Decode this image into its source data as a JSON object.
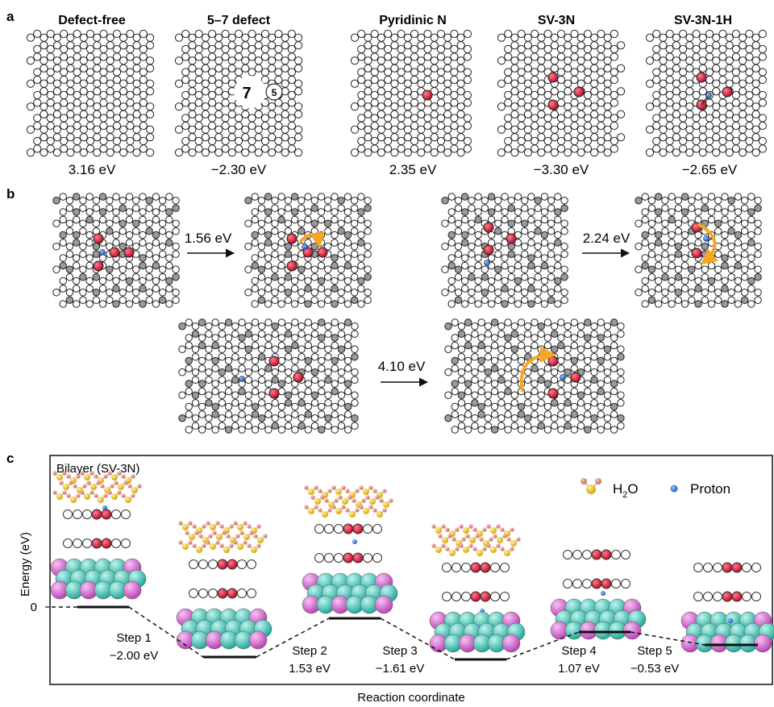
{
  "panel_a": {
    "label": "a",
    "structures": [
      {
        "title": "Defect-free",
        "energy": "3.16 eV"
      },
      {
        "title": "5–7 defect",
        "energy": "−2.30 eV",
        "ring_labels": [
          "7",
          "5"
        ]
      },
      {
        "title": "Pyridinic N",
        "energy": "2.35 eV"
      },
      {
        "title": "SV-3N",
        "energy": "−3.30 eV"
      },
      {
        "title": "SV-3N-1H",
        "energy": "−2.65 eV"
      }
    ]
  },
  "panel_b": {
    "label": "b",
    "barriers": [
      "1.56 eV",
      "2.24 eV",
      "4.10 eV"
    ]
  },
  "panel_c": {
    "label": "c",
    "box_title": "Bilayer (SV-3N)",
    "ylabel": "Energy (eV)",
    "xlabel": "Reaction coordinate",
    "zero_tick": "0",
    "legend": {
      "water_prefix": "H",
      "water_sub": "2",
      "water_suffix": "O",
      "proton": "Proton"
    },
    "steps": [
      {
        "name": "Step 1",
        "value": "−2.00 eV"
      },
      {
        "name": "Step 2",
        "value": "1.53 eV"
      },
      {
        "name": "Step 3",
        "value": "−1.61 eV"
      },
      {
        "name": "Step 4",
        "value": "1.07 eV"
      },
      {
        "name": "Step 5",
        "value": "−0.53 eV"
      }
    ]
  },
  "colors": {
    "nitrogen": "#d8203a",
    "proton": "#2a6fd6",
    "oxygen": "#e39080",
    "water_core": "#f0c419",
    "cu_teal": "#3cc6b6",
    "cu_pink": "#d865d2",
    "arrow_orange": "#f5a623",
    "bond": "#222222",
    "grey_atom": "#9a9a9a"
  }
}
